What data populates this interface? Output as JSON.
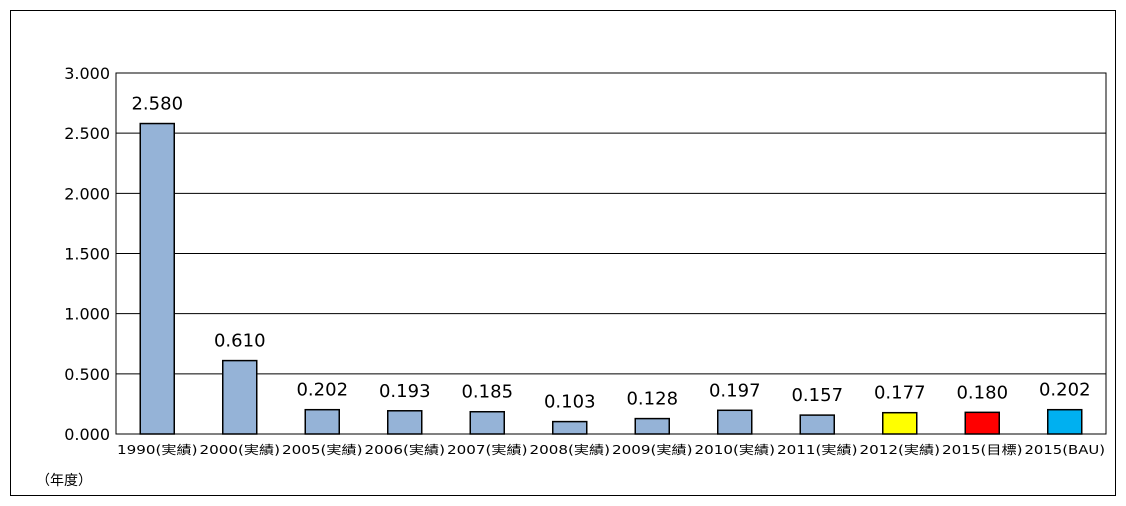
{
  "chart_data": {
    "type": "bar",
    "categories": [
      "1990(実績)",
      "2000(実績)",
      "2005(実績)",
      "2006(実績)",
      "2007(実績)",
      "2008(実績)",
      "2009(実績)",
      "2010(実績)",
      "2011(実績)",
      "2012(実績)",
      "2015(目標)",
      "2015(BAU)"
    ],
    "values": [
      2.58,
      0.61,
      0.202,
      0.193,
      0.185,
      0.103,
      0.128,
      0.197,
      0.157,
      0.177,
      0.18,
      0.202
    ],
    "data_labels": [
      "2.580",
      "0.610",
      "0.202",
      "0.193",
      "0.185",
      "0.103",
      "0.128",
      "0.197",
      "0.157",
      "0.177",
      "0.180",
      "0.202"
    ],
    "bar_colors": [
      "#95b3d7",
      "#95b3d7",
      "#95b3d7",
      "#95b3d7",
      "#95b3d7",
      "#95b3d7",
      "#95b3d7",
      "#95b3d7",
      "#95b3d7",
      "#ffff00",
      "#ff0000",
      "#00b0f0"
    ],
    "yticks": [
      "0.000",
      "0.500",
      "1.000",
      "1.500",
      "2.000",
      "2.500",
      "3.000"
    ],
    "ylim": [
      0,
      3.0
    ],
    "xlabel": "（年度）",
    "ylabel": "",
    "title": "",
    "grid": true,
    "legend": false
  }
}
